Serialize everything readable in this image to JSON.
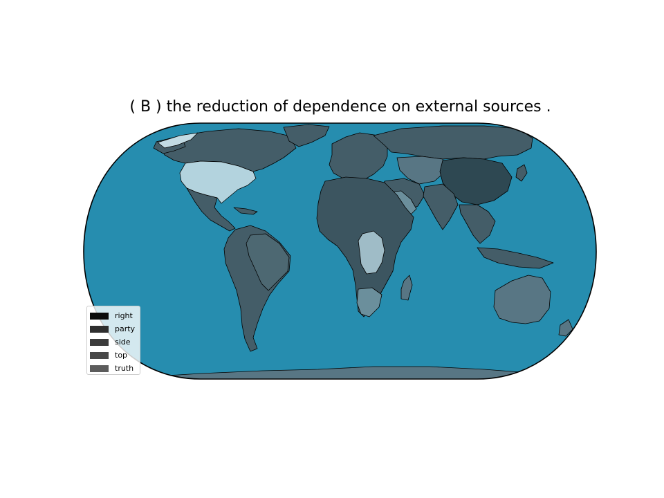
{
  "title": "( B ) the reduction of dependence on external sources .",
  "colors": {
    "ocean": "#268daf",
    "land_default": "#445d68",
    "border": "#000000",
    "globe_outline": "#000000"
  },
  "legend": {
    "items": [
      {
        "label": "right",
        "color": "#0b0b0b"
      },
      {
        "label": "party",
        "color": "#2e2e2e"
      },
      {
        "label": "side",
        "color": "#3c3c3c"
      },
      {
        "label": "top",
        "color": "#484848"
      },
      {
        "label": "truth",
        "color": "#5c5c5c"
      }
    ]
  },
  "map": {
    "projection": "Robinson-like",
    "highlighted_regions": [
      {
        "region": "United States",
        "color": "#b3d3de"
      },
      {
        "region": "Greenland",
        "color": "#c2dbe4"
      },
      {
        "region": "DR Congo",
        "color": "#9fbcc7"
      },
      {
        "region": "China",
        "color": "#2e4852"
      },
      {
        "region": "Australia",
        "color": "#587684"
      },
      {
        "region": "Antarctica",
        "color": "#587684"
      },
      {
        "region": "Saudi Arabia",
        "color": "#6b8f9c"
      }
    ]
  }
}
